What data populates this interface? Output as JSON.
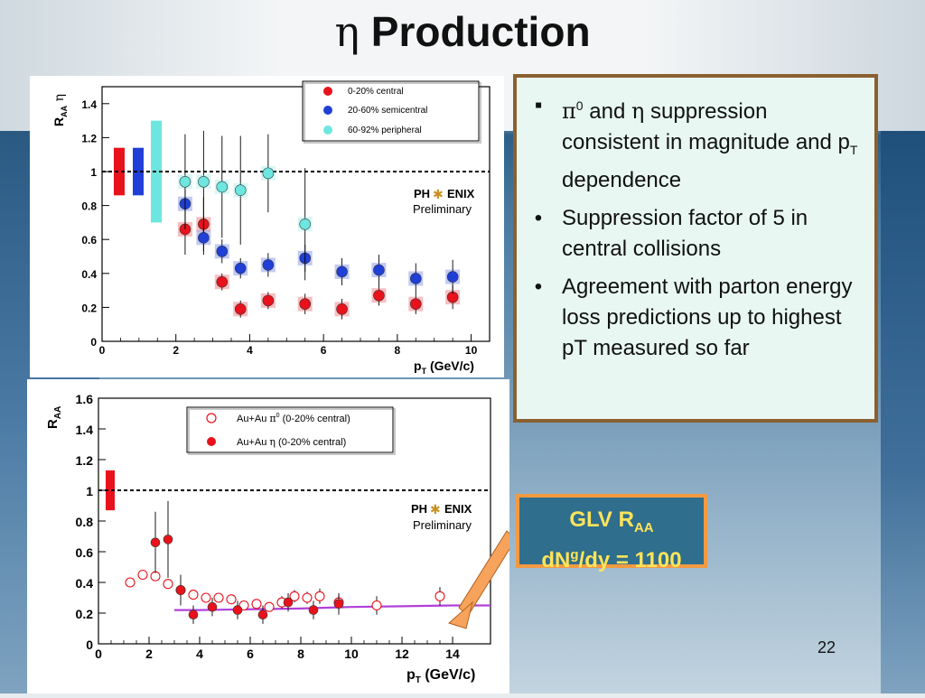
{
  "slide": {
    "title_symbol": "η",
    "title_text": "Production",
    "page_number": "22"
  },
  "bullets": [
    {
      "marker": "▪",
      "symbol1": "π",
      "sup1": "0",
      "mid": " and ",
      "symbol2": "η",
      "rest_a": " suppression consistent in magnitude and p",
      "sub": "T",
      "rest_b": " dependence"
    },
    {
      "marker": "•",
      "text": "Suppression factor of 5 in central collisions"
    },
    {
      "marker": "•",
      "text": "Agreement with parton energy loss predictions up to highest pT measured so far"
    }
  ],
  "glv_box": {
    "line1_main": "GLV R",
    "line1_sub": "AA",
    "line2_a": "dN",
    "line2_sup": "g",
    "line2_b": "/dy = 1100"
  },
  "chart_data": [
    {
      "type": "scatter",
      "xlabel_main": "p",
      "xlabel_sub": "T",
      "xlabel_rest": " (GeV/c)",
      "ylabel_main": "R",
      "ylabel_sub": "AA",
      "ylabel_rest": " η",
      "xlim": [
        0,
        10.5
      ],
      "ylim": [
        0,
        1.5
      ],
      "xticks": [
        0,
        2,
        4,
        6,
        8,
        10
      ],
      "yticks": [
        0,
        0.2,
        0.4,
        0.6,
        0.8,
        1,
        1.2,
        1.4
      ],
      "ytick_labels": [
        "0",
        "0.2",
        "0.4",
        "0.6",
        "0.8",
        "1",
        "1.2",
        "1.4"
      ],
      "reference_line": 1,
      "logo_text_a": "PH",
      "logo_text_b": "ENIX",
      "logo_sub": "Preliminary",
      "series": [
        {
          "name": "0-20% central",
          "color": "#e8121c",
          "x": [
            2.25,
            2.75,
            3.25,
            3.75,
            4.5,
            5.5,
            6.5,
            7.5,
            8.5,
            9.5
          ],
          "y": [
            0.66,
            0.69,
            0.35,
            0.19,
            0.24,
            0.22,
            0.19,
            0.27,
            0.22,
            0.26
          ],
          "err": [
            0.15,
            0.16,
            0.05,
            0.05,
            0.05,
            0.06,
            0.06,
            0.06,
            0.06,
            0.07
          ]
        },
        {
          "name": "20-60% semicentral",
          "color": "#1f3fd6",
          "x": [
            2.25,
            2.75,
            3.25,
            3.75,
            4.5,
            5.5,
            6.5,
            7.5,
            8.5,
            9.5
          ],
          "y": [
            0.81,
            0.61,
            0.53,
            0.43,
            0.45,
            0.49,
            0.41,
            0.42,
            0.37,
            0.38
          ],
          "err": [
            0.12,
            0.1,
            0.07,
            0.06,
            0.07,
            0.08,
            0.08,
            0.09,
            0.09,
            0.1
          ]
        },
        {
          "name": "60-92% peripheral",
          "color": "#6ee6e0",
          "x": [
            2.25,
            2.75,
            3.25,
            3.75,
            4.5,
            5.5
          ],
          "y": [
            0.94,
            0.94,
            0.91,
            0.89,
            0.99,
            0.69
          ],
          "err": [
            0.28,
            0.3,
            0.3,
            0.32,
            0.23,
            0.33
          ]
        }
      ]
    },
    {
      "type": "scatter",
      "xlabel_main": "p",
      "xlabel_sub": "T",
      "xlabel_rest": " (GeV/c)",
      "ylabel_main": "R",
      "ylabel_sub": "AA",
      "ylabel_rest": "",
      "xlim": [
        0,
        15.5
      ],
      "ylim": [
        0,
        1.6
      ],
      "xticks": [
        0,
        2,
        4,
        6,
        8,
        10,
        12,
        14
      ],
      "yticks": [
        0,
        0.2,
        0.4,
        0.6,
        0.8,
        1,
        1.2,
        1.4,
        1.6
      ],
      "ytick_labels": [
        "0",
        "0.2",
        "0.4",
        "0.6",
        "0.8",
        "1",
        "1.2",
        "1.4",
        "1.6"
      ],
      "reference_line": 1,
      "logo_text_a": "PH",
      "logo_text_b": "ENIX",
      "logo_sub": "Preliminary",
      "series": [
        {
          "name": "Au+Au π⁰ (0-20% central)",
          "legend_a": "Au+Au ",
          "legend_sym": "π",
          "legend_sup": "0",
          "legend_b": " (0-20% central)",
          "color": "#e8121c",
          "open": true,
          "x": [
            1.25,
            1.75,
            2.25,
            2.75,
            3.25,
            3.75,
            4.25,
            4.75,
            5.25,
            5.75,
            6.25,
            6.75,
            7.25,
            7.75,
            8.25,
            8.75,
            9.5,
            11,
            13.5
          ],
          "y": [
            0.4,
            0.45,
            0.44,
            0.39,
            0.35,
            0.32,
            0.3,
            0.3,
            0.29,
            0.25,
            0.26,
            0.24,
            0.27,
            0.31,
            0.3,
            0.31,
            0.27,
            0.25,
            0.31
          ],
          "err": [
            0.02,
            0.02,
            0.02,
            0.02,
            0.02,
            0.02,
            0.02,
            0.02,
            0.02,
            0.02,
            0.03,
            0.03,
            0.04,
            0.04,
            0.04,
            0.05,
            0.05,
            0.06,
            0.06
          ]
        },
        {
          "name": "Au+Au η (0-20% central)",
          "legend_a": "Au+Au ",
          "legend_sym": "η",
          "legend_sup": "",
          "legend_b": " (0-20% central)",
          "color": "#e8121c",
          "open": false,
          "x": [
            2.25,
            2.75,
            3.25,
            3.75,
            4.5,
            5.5,
            6.5,
            7.5,
            8.5,
            9.5
          ],
          "y": [
            0.66,
            0.68,
            0.35,
            0.19,
            0.24,
            0.22,
            0.19,
            0.27,
            0.22,
            0.26
          ],
          "err": [
            0.2,
            0.25,
            0.1,
            0.06,
            0.06,
            0.06,
            0.06,
            0.06,
            0.06,
            0.07
          ]
        }
      ],
      "theory": {
        "name": "GLV R_AA",
        "x": [
          3,
          4,
          6,
          8,
          10,
          12,
          14,
          15.5
        ],
        "y": [
          0.22,
          0.22,
          0.225,
          0.23,
          0.24,
          0.245,
          0.25,
          0.25
        ],
        "color": "#b040d8"
      }
    }
  ]
}
